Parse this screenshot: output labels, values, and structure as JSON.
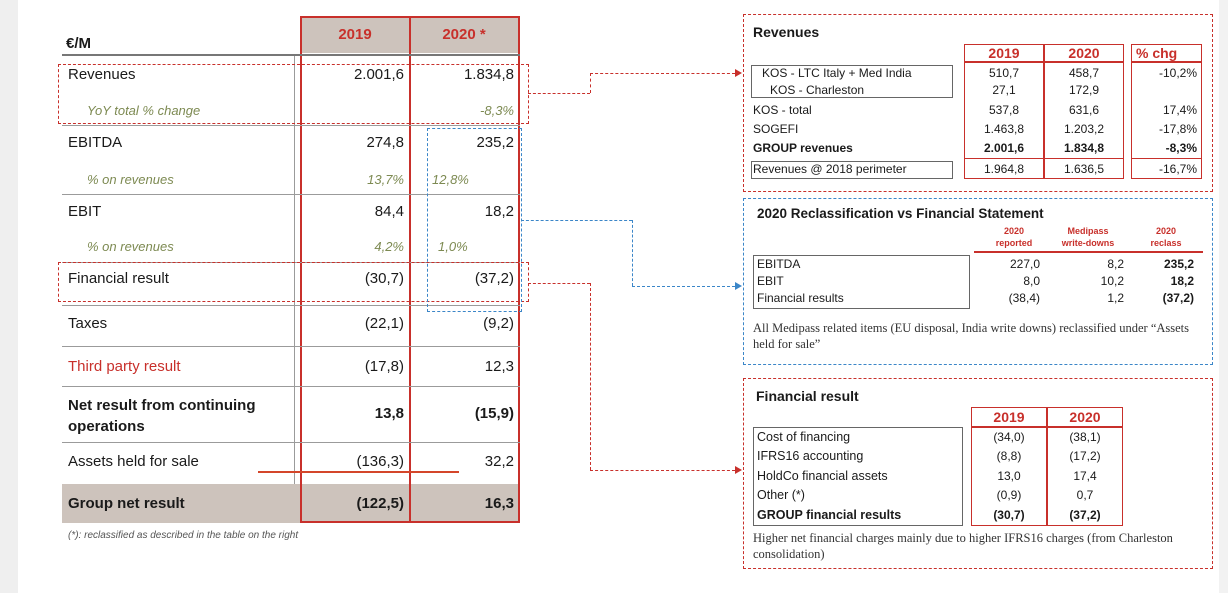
{
  "main": {
    "unit": "€/M",
    "col_2019": "2019",
    "col_2020": "2020 *",
    "rows": [
      {
        "label": "Revenues",
        "v2019": "2.001,6",
        "v2020": "1.834,8"
      },
      {
        "label": "YoY total % change",
        "v2019": "",
        "v2020": "-8,3%"
      },
      {
        "label": "EBITDA",
        "v2019": "274,8",
        "v2020": "235,2"
      },
      {
        "label": "% on revenues",
        "v2019": "13,7%",
        "v2020": "12,8%"
      },
      {
        "label": "EBIT",
        "v2019": "84,4",
        "v2020": "18,2"
      },
      {
        "label": "% on revenues",
        "v2019": "4,2%",
        "v2020": "1,0%"
      },
      {
        "label": "Financial result",
        "v2019": "(30,7)",
        "v2020": "(37,2)"
      },
      {
        "label": "Taxes",
        "v2019": "(22,1)",
        "v2020": "(9,2)"
      },
      {
        "label": "Third party result",
        "v2019": "(17,8)",
        "v2020": "12,3"
      },
      {
        "label": "Net result from continuing operations",
        "v2019": "13,8",
        "v2020": "(15,9)"
      },
      {
        "label": "Assets held for sale",
        "v2019": "(136,3)",
        "v2020": "32,2"
      },
      {
        "label": "Group net result",
        "v2019": "(122,5)",
        "v2020": "16,3"
      }
    ],
    "footnote": "(*): reclassified as described in the table on the right"
  },
  "revenues_panel": {
    "title": "Revenues",
    "headers": [
      "2019",
      "2020",
      "% chg"
    ],
    "rows": [
      {
        "label": "KOS - LTC Italy + Med India",
        "a": "510,7",
        "b": "458,7",
        "c": "-10,2%"
      },
      {
        "label": "KOS - Charleston",
        "a": "27,1",
        "b": "172,9",
        "c": ""
      },
      {
        "label": "KOS - total",
        "a": "537,8",
        "b": "631,6",
        "c": "17,4%"
      },
      {
        "label": "SOGEFI",
        "a": "1.463,8",
        "b": "1.203,2",
        "c": "-17,8%"
      },
      {
        "label": "GROUP revenues",
        "a": "2.001,6",
        "b": "1.834,8",
        "c": "-8,3%"
      },
      {
        "label": "Revenues @ 2018 perimeter",
        "a": "1.964,8",
        "b": "1.636,5",
        "c": "-16,7%"
      }
    ]
  },
  "reclass_panel": {
    "title": "2020 Reclassification vs Financial Statement",
    "headers": [
      [
        "2020",
        "reported"
      ],
      [
        "Medipass",
        "write-downs"
      ],
      [
        "2020",
        "reclass"
      ]
    ],
    "rows": [
      {
        "label": "EBITDA",
        "a": "227,0",
        "b": "8,2",
        "c": "235,2"
      },
      {
        "label": "EBIT",
        "a": "8,0",
        "b": "10,2",
        "c": "18,2"
      },
      {
        "label": "Financial results",
        "a": "(38,4)",
        "b": "1,2",
        "c": "(37,2)"
      }
    ],
    "note": "All Medipass related items (EU disposal, India write downs) reclassified under “Assets held for sale”"
  },
  "financial_panel": {
    "title": "Financial result",
    "headers": [
      "2019",
      "2020"
    ],
    "rows": [
      {
        "label": "Cost of financing",
        "a": "(34,0)",
        "b": "(38,1)"
      },
      {
        "label": "IFRS16 accounting",
        "a": "(8,8)",
        "b": "(17,2)"
      },
      {
        "label": "HoldCo financial assets",
        "a": "13,0",
        "b": "17,4"
      },
      {
        "label": "Other (*)",
        "a": "(0,9)",
        "b": "0,7"
      },
      {
        "label": "GROUP financial results",
        "a": "(30,7)",
        "b": "(37,2)"
      }
    ],
    "note": "Higher net financial charges mainly due to higher IFRS16 charges (from Charleston consolidation)"
  }
}
